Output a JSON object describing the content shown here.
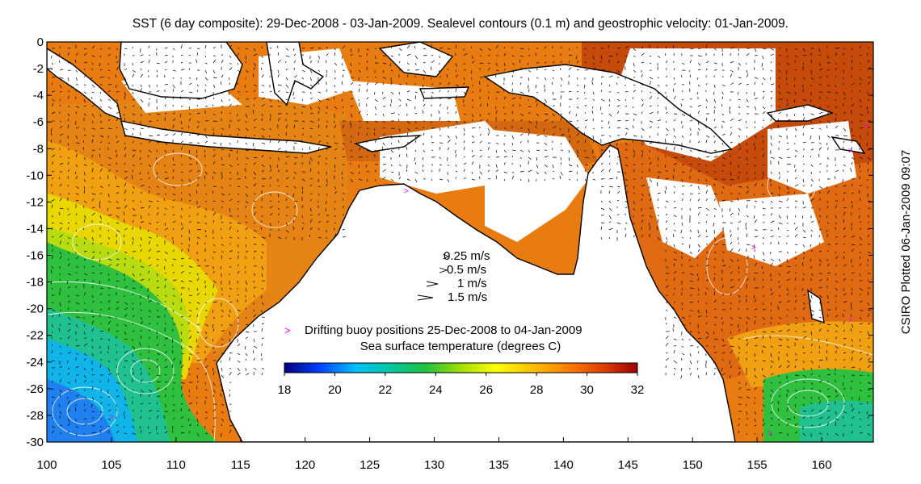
{
  "title": "SST (6 day composite): 29-Dec-2008 - 03-Jan-2009. Sealevel contours (0.1 m) and geostrophic velocity: 01-Jan-2009.",
  "side_label": "CSIRO Plotted 06-Jan-2009 09:07",
  "map": {
    "lon_range": [
      100,
      164
    ],
    "lat_range": [
      -30,
      0
    ],
    "x_ticks": [
      100,
      105,
      110,
      115,
      120,
      125,
      130,
      135,
      140,
      145,
      150,
      155,
      160
    ],
    "y_ticks": [
      0,
      -2,
      -4,
      -6,
      -8,
      -10,
      -12,
      -14,
      -16,
      -18,
      -20,
      -22,
      -24,
      -26,
      -28,
      -30
    ],
    "x_tick_labels": [
      "100",
      "105",
      "110",
      "115",
      "120",
      "125",
      "130",
      "135",
      "140",
      "145",
      "150",
      "155",
      "160"
    ],
    "y_tick_labels": [
      "0",
      "-2",
      "-4",
      "-6",
      "-8",
      "-10",
      "-12",
      "-14",
      "-16",
      "-18",
      "-20",
      "-22",
      "-24",
      "-26",
      "-28",
      "-30"
    ]
  },
  "velocity_legend": {
    "entries": [
      {
        "label": "0.25 m/s",
        "speed": 0.25
      },
      {
        "label": "0.5 m/s",
        "speed": 0.5
      },
      {
        "label": "1 m/s",
        "speed": 1
      },
      {
        "label": "1.5 m/s",
        "speed": 1.5
      }
    ]
  },
  "buoy_legend": {
    "symbol": ">",
    "label": "Drifting buoy positions 25-Dec-2008 to 04-Jan-2009",
    "color": "#ff00ff"
  },
  "colorbar": {
    "title": "Sea surface temperature (degrees C)",
    "min": 18,
    "max": 32,
    "ticks": [
      "18",
      "20",
      "22",
      "24",
      "26",
      "28",
      "30",
      "32"
    ],
    "colors": [
      "#00007f",
      "#0040ff",
      "#00bfff",
      "#00c8a0",
      "#20c040",
      "#a0e000",
      "#ffff00",
      "#ffc000",
      "#ff8000",
      "#e04000",
      "#a00000"
    ]
  },
  "colors": {
    "land": "#ffffff",
    "coast": "#000000",
    "contour": "#ffffff",
    "arrow": "#000000"
  }
}
